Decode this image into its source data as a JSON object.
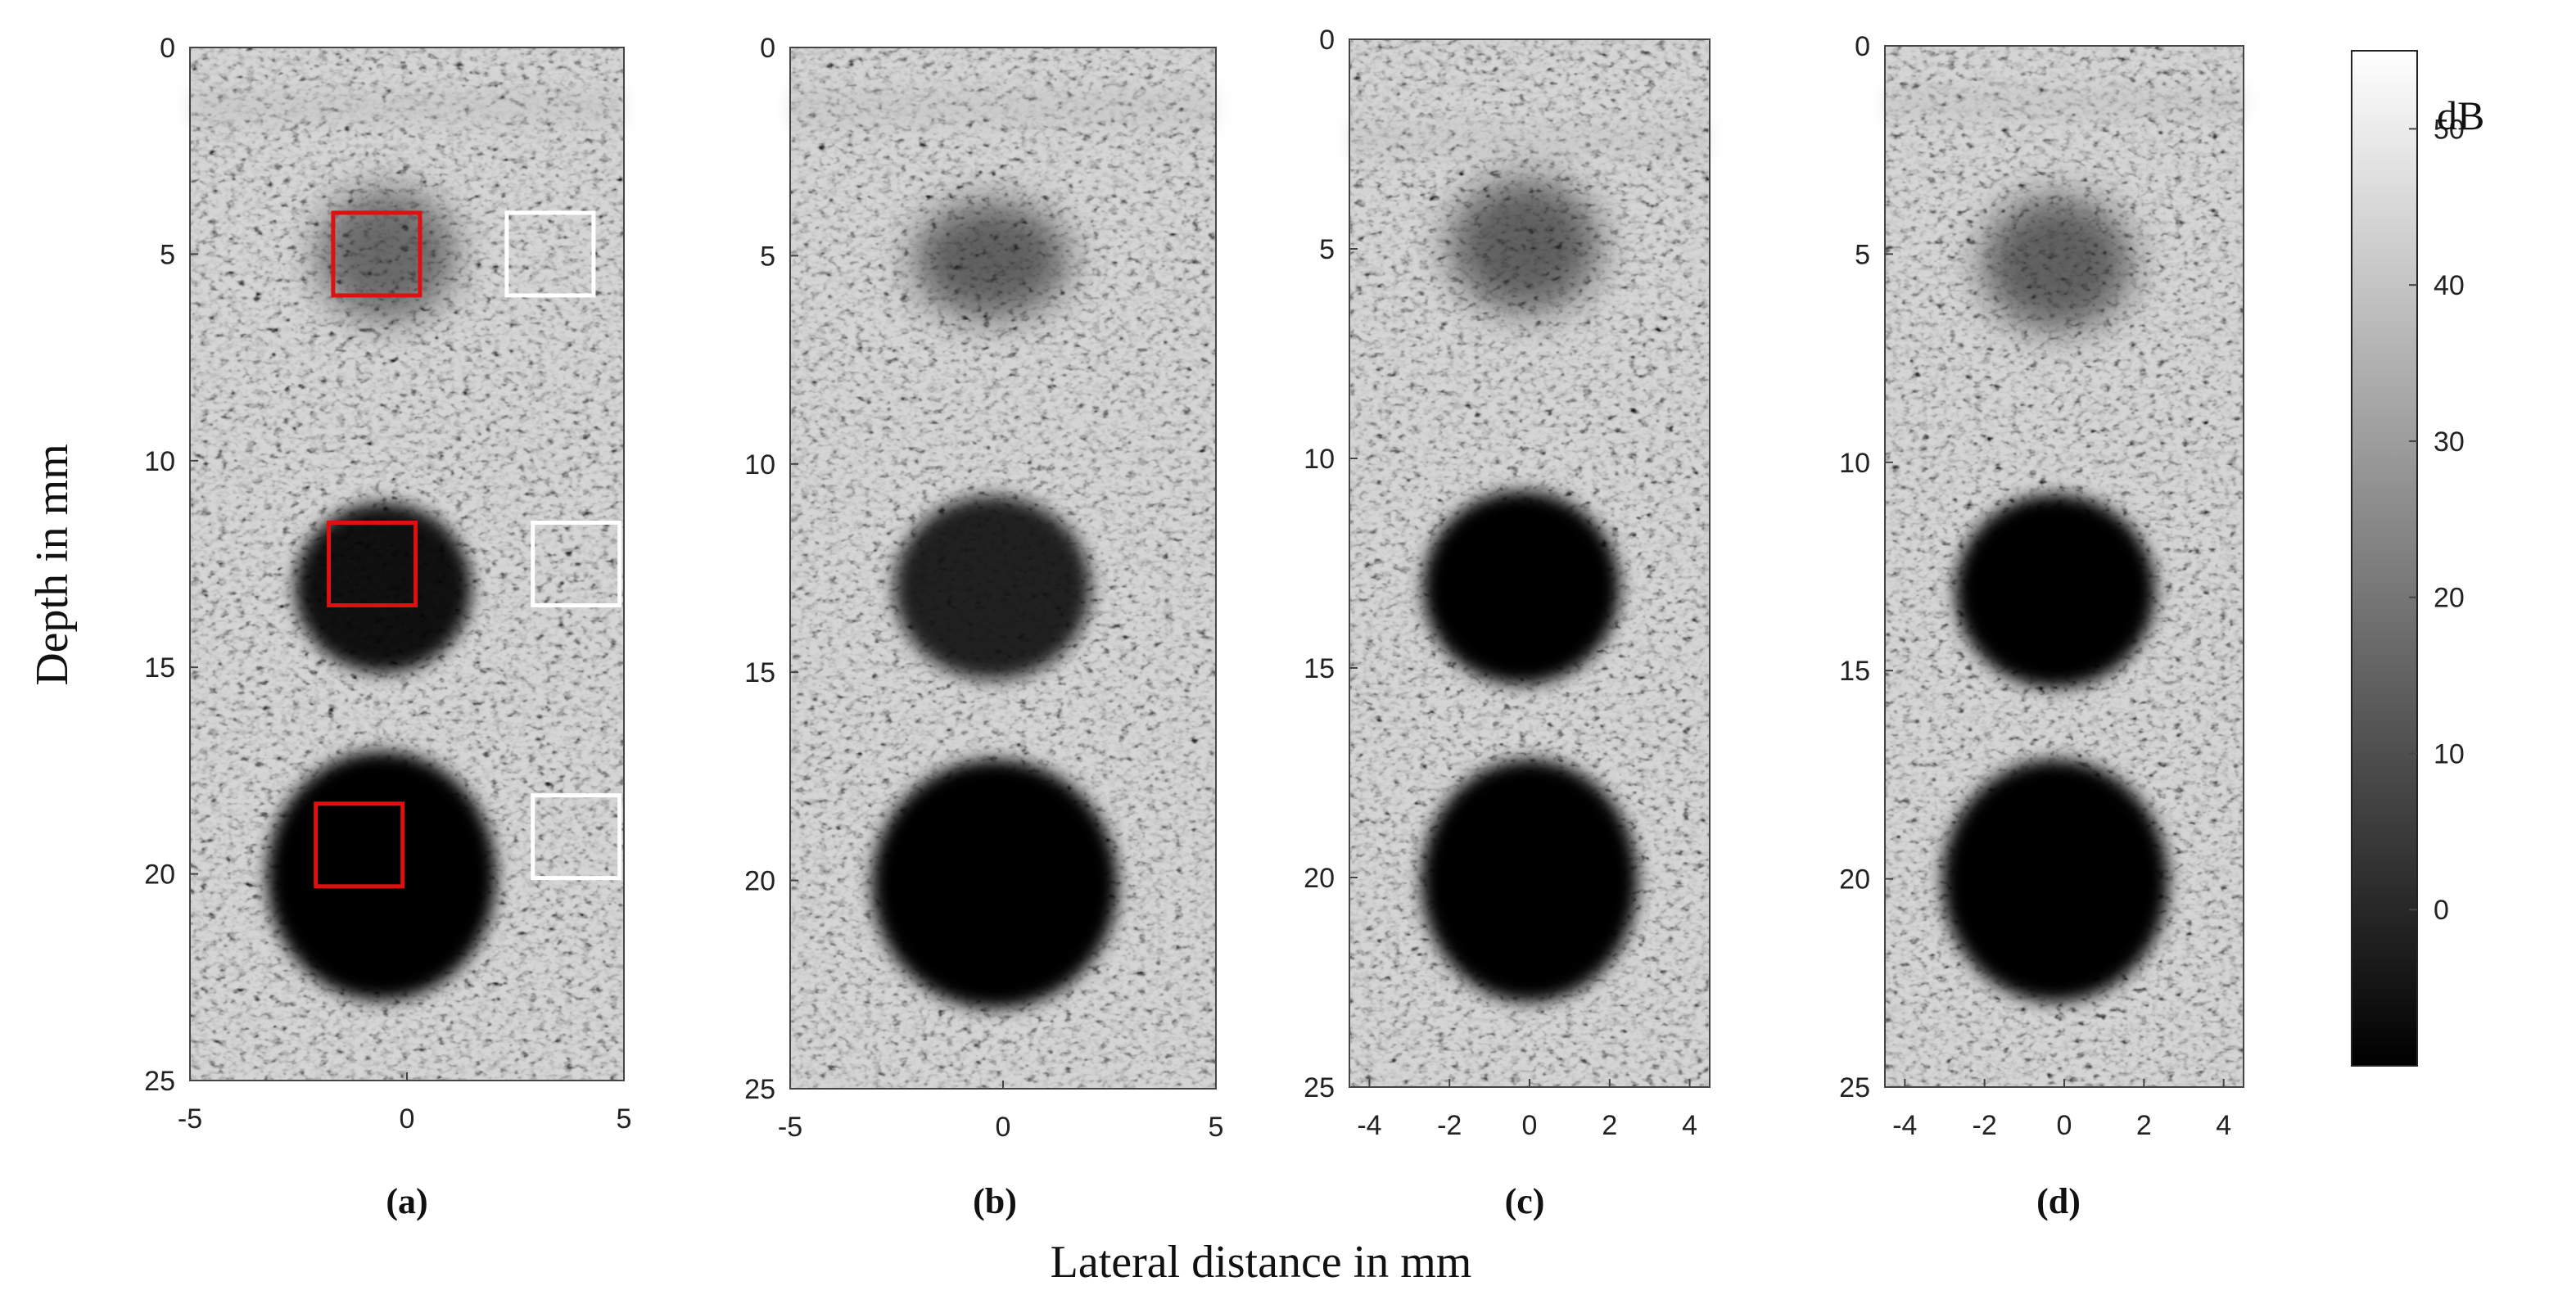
{
  "figure": {
    "y_axis_label": "Depth in mm",
    "x_axis_label": "Lateral distance in mm",
    "panels": [
      {
        "caption": "(a)",
        "x_ticks": [
          "-5",
          "0",
          "5"
        ],
        "y_ticks": [
          "0",
          "5",
          "10",
          "15",
          "20",
          "25"
        ],
        "roi_boxes": [
          {
            "color": "#e01010",
            "role": "inside-cyst",
            "x_range_mm": [
              -1.7,
              0.3
            ],
            "depth_range_mm": [
              4.0,
              6.0
            ]
          },
          {
            "color": "#ffffff",
            "role": "background",
            "x_range_mm": [
              2.3,
              4.3
            ],
            "depth_range_mm": [
              4.0,
              6.0
            ]
          },
          {
            "color": "#e01010",
            "role": "inside-cyst",
            "x_range_mm": [
              -1.8,
              0.2
            ],
            "depth_range_mm": [
              11.5,
              13.5
            ]
          },
          {
            "color": "#ffffff",
            "role": "background",
            "x_range_mm": [
              2.9,
              4.9
            ],
            "depth_range_mm": [
              11.5,
              13.5
            ]
          },
          {
            "color": "#e01010",
            "role": "inside-cyst",
            "x_range_mm": [
              -2.1,
              -0.1
            ],
            "depth_range_mm": [
              18.3,
              20.3
            ]
          },
          {
            "color": "#ffffff",
            "role": "background",
            "x_range_mm": [
              2.9,
              4.9
            ],
            "depth_range_mm": [
              18.1,
              20.1
            ]
          }
        ]
      },
      {
        "caption": "(b)",
        "x_ticks": [
          "-5",
          "0",
          "5"
        ],
        "y_ticks": [
          "0",
          "5",
          "10",
          "15",
          "20",
          "25"
        ],
        "roi_boxes": []
      },
      {
        "caption": "(c)",
        "x_ticks": [
          "-4",
          "-2",
          "0",
          "2",
          "4"
        ],
        "y_ticks": [
          "0",
          "5",
          "10",
          "15",
          "20",
          "25"
        ],
        "roi_boxes": []
      },
      {
        "caption": "(d)",
        "x_ticks": [
          "-4",
          "-2",
          "0",
          "2",
          "4"
        ],
        "y_ticks": [
          "0",
          "5",
          "10",
          "15",
          "20",
          "25"
        ],
        "roi_boxes": []
      }
    ],
    "colorbar": {
      "unit_label": "dB",
      "ticks": [
        "50",
        "40",
        "30",
        "20",
        "10",
        "0"
      ],
      "colormap": "gray"
    }
  }
}
